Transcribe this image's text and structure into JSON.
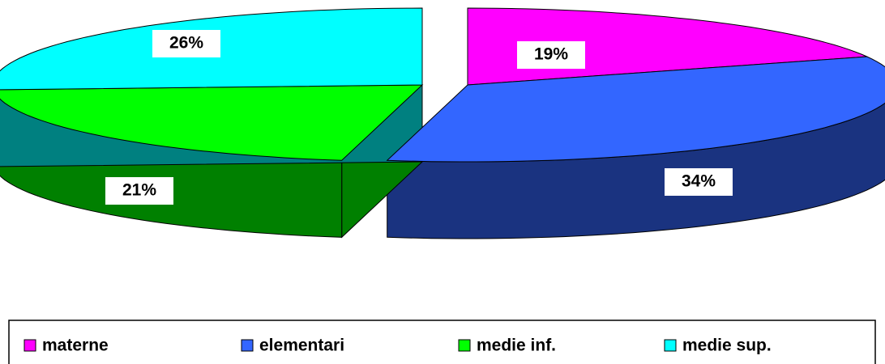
{
  "chart_data": {
    "type": "pie3d",
    "categories": [
      "materne",
      "elementari",
      "medie inf.",
      "medie sup."
    ],
    "values": [
      19,
      34,
      21,
      26
    ],
    "value_labels": [
      "19%",
      "34%",
      "21%",
      "26%"
    ],
    "colors": [
      "#ff00ff",
      "#3366ff",
      "#00ff00",
      "#00ffff"
    ],
    "legend": "bottom"
  }
}
